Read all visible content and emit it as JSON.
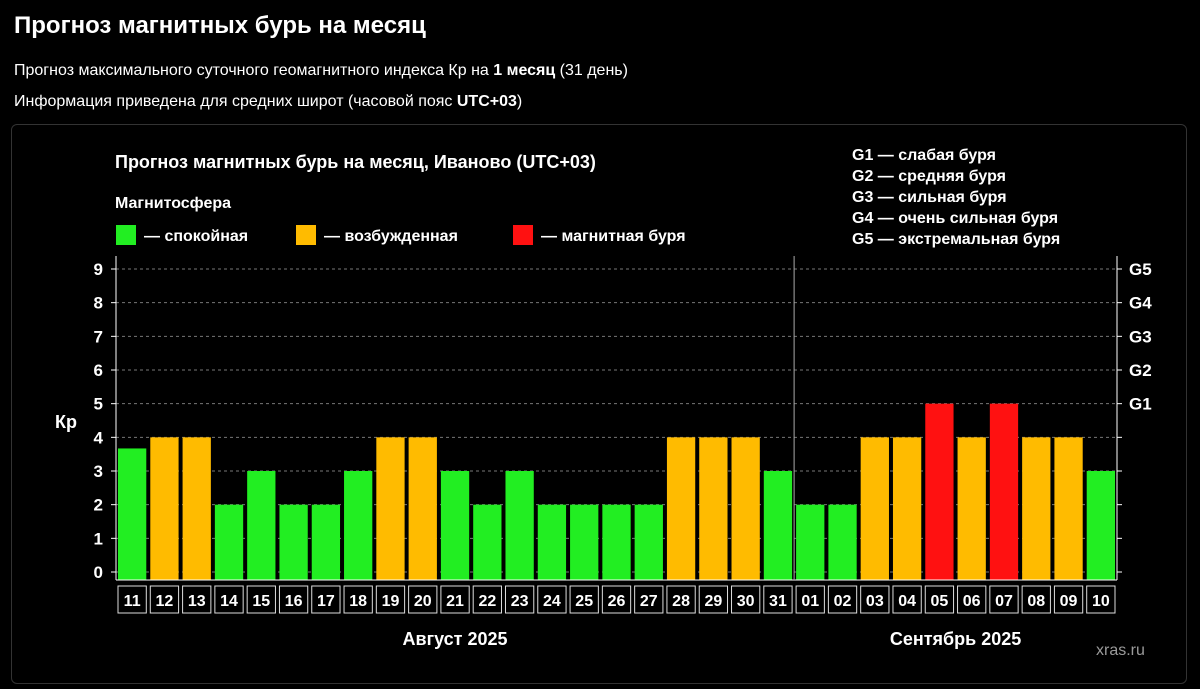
{
  "header": {
    "title": "Прогноз магнитных бурь на месяц",
    "line1_prefix": "Прогноз максимального суточного геомагнитного индекса Кр на ",
    "line1_bold": "1 месяц",
    "line1_suffix": " (31 день)",
    "line2_prefix": "Информация приведена для средних широт (часовой пояс ",
    "line2_bold": "UTC+03",
    "line2_suffix": ")"
  },
  "watermark": "xras.ru",
  "colors": {
    "calm": "#22ee22",
    "excited": "#ffbb00",
    "storm": "#ff1111",
    "grid": "#777777",
    "axis": "#ffffff"
  },
  "chart_data": {
    "type": "bar",
    "title": "Прогноз магнитных бурь на месяц, Иваново (UTC+03)",
    "legend_title": "Магнитосфера",
    "legend": [
      {
        "key": "calm",
        "label": "— спокойная"
      },
      {
        "key": "excited",
        "label": "— возбужденная"
      },
      {
        "key": "storm",
        "label": "— магнитная буря"
      }
    ],
    "g_legend": [
      "G1 — слабая буря",
      "G2 — средняя буря",
      "G3 — сильная буря",
      "G4 — очень сильная буря",
      "G5 — экстремальная буря"
    ],
    "ylabel": "Кр",
    "ylim": [
      0,
      9
    ],
    "yticks": [
      0,
      1,
      2,
      3,
      4,
      5,
      6,
      7,
      8,
      9
    ],
    "right_ticks": [
      {
        "value": 5,
        "label": "G1"
      },
      {
        "value": 6,
        "label": "G2"
      },
      {
        "value": 7,
        "label": "G3"
      },
      {
        "value": 8,
        "label": "G4"
      },
      {
        "value": 9,
        "label": "G5"
      }
    ],
    "grid": true,
    "months": [
      {
        "label": "Август 2025",
        "days": [
          "11",
          "12",
          "13",
          "14",
          "15",
          "16",
          "17",
          "18",
          "19",
          "20",
          "21",
          "22",
          "23",
          "24",
          "25",
          "26",
          "27",
          "28",
          "29",
          "30",
          "31"
        ]
      },
      {
        "label": "Сентябрь 2025",
        "days": [
          "01",
          "02",
          "03",
          "04",
          "05",
          "06",
          "07",
          "08",
          "09",
          "10"
        ]
      }
    ],
    "values": [
      3.67,
      4,
      4,
      2,
      3,
      2,
      2,
      3,
      4,
      4,
      3,
      2,
      3,
      2,
      2,
      2,
      2,
      4,
      4,
      4,
      3,
      2,
      2,
      4,
      4,
      5,
      4,
      5,
      4,
      4,
      3
    ]
  }
}
